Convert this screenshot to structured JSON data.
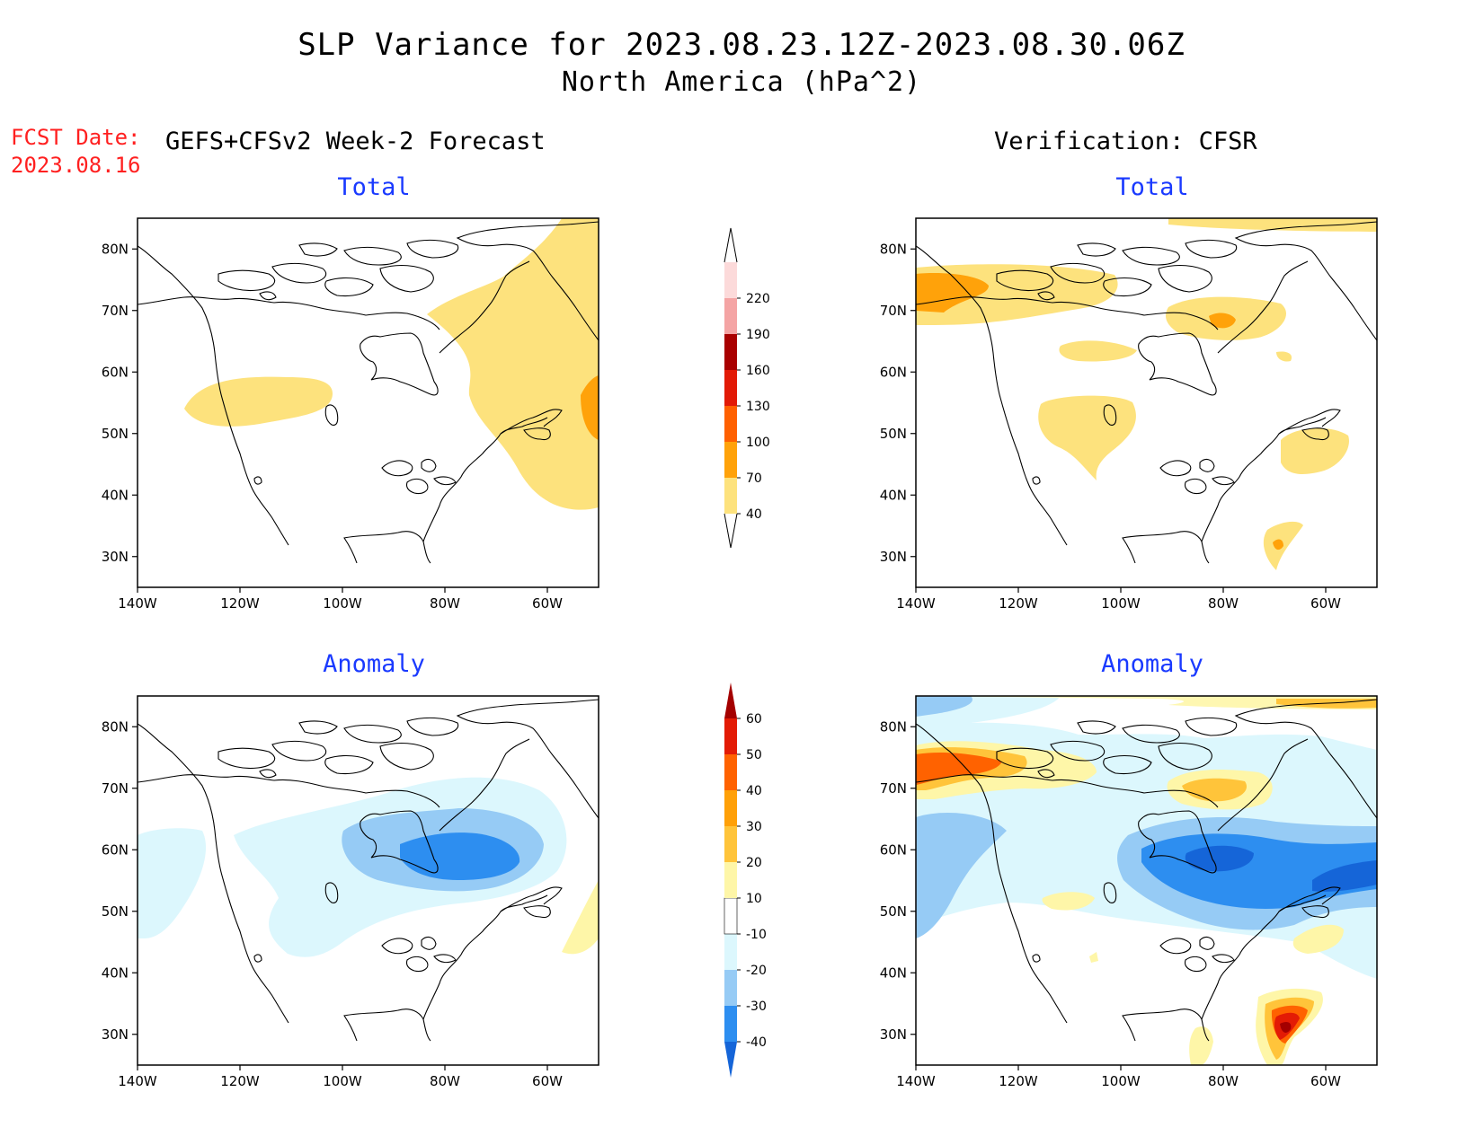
{
  "title": {
    "line1": "SLP Variance for 2023.08.23.12Z-2023.08.30.06Z",
    "line2": "North America (hPa^2)"
  },
  "forecast_date": {
    "label": "FCST Date:",
    "value": "2023.08.16"
  },
  "columns": {
    "left": "GEFS+CFSv2 Week-2 Forecast",
    "right": "Verification: CFSR"
  },
  "panels": [
    {
      "id": "forecast-total",
      "title": "Total"
    },
    {
      "id": "verification-total",
      "title": "Total"
    },
    {
      "id": "forecast-anomaly",
      "title": "Anomaly"
    },
    {
      "id": "verification-anomaly",
      "title": "Anomaly"
    }
  ],
  "axes": {
    "lat_ticks": [
      "80N",
      "70N",
      "60N",
      "50N",
      "40N",
      "30N"
    ],
    "lon_ticks": [
      "140W",
      "120W",
      "100W",
      "80W",
      "60W"
    ],
    "lat_values": [
      80,
      70,
      60,
      50,
      40,
      30
    ],
    "lon_values": [
      -140,
      -120,
      -100,
      -80,
      -60
    ],
    "lat_range": [
      25,
      85
    ],
    "lon_range": [
      -140,
      -50
    ]
  },
  "colorbars": {
    "total": {
      "labels": [
        "40",
        "70",
        "100",
        "130",
        "160",
        "190",
        "220"
      ],
      "colors": [
        "#fde27d",
        "#ffa20a",
        "#ff6000",
        "#e21a06",
        "#a90000",
        "#f4a4a4",
        "#fcdada"
      ]
    },
    "anomaly": {
      "labels": [
        "-40",
        "-30",
        "-20",
        "-10",
        "10",
        "20",
        "30",
        "40",
        "50",
        "60"
      ],
      "colors": [
        "#1565d8",
        "#2d8ef0",
        "#96cbf5",
        "#dcf7fd",
        "#ffffff",
        "#fef6a8",
        "#ffc43a",
        "#ffa008",
        "#ff6200",
        "#e31b05",
        "#a40000"
      ]
    }
  }
}
